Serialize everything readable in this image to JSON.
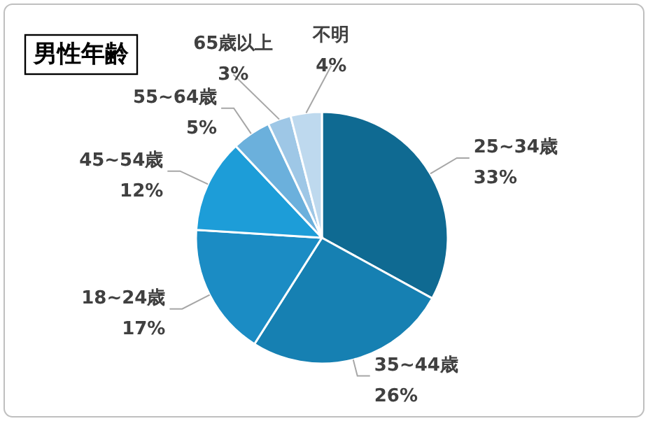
{
  "chart_data": {
    "type": "pie",
    "title": "男性年齢",
    "categories": [
      "25~34歳",
      "35~44歳",
      "18~24歳",
      "45~54歳",
      "55~64歳",
      "65歳以上",
      "不明"
    ],
    "values": [
      33,
      26,
      17,
      12,
      5,
      3,
      4
    ],
    "colors": [
      "#0f6a92",
      "#1680b2",
      "#1b8cc4",
      "#1d9dd8",
      "#6bb0dc",
      "#9ec7e6",
      "#bed9ee"
    ],
    "value_labels": [
      "33%",
      "26%",
      "17%",
      "12%",
      "5%",
      "3%",
      "4%"
    ]
  }
}
